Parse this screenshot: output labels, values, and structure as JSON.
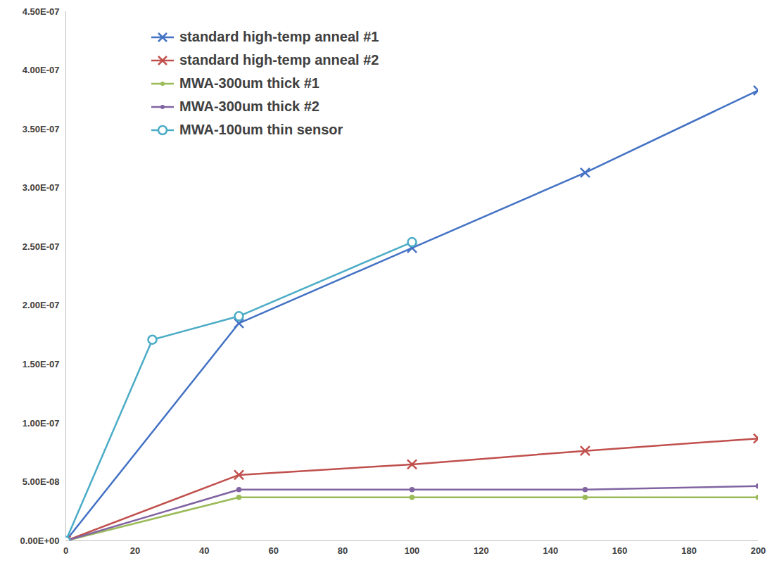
{
  "chart_data": {
    "type": "line",
    "xlim": [
      0,
      200
    ],
    "xticks": [
      0,
      20,
      40,
      60,
      80,
      100,
      120,
      140,
      160,
      180,
      200
    ],
    "ylim": [
      0,
      4.5e-07
    ],
    "yticks": [
      {
        "value": 0,
        "label": "0.00E+00"
      },
      {
        "value": 5e-08,
        "label": "5.00E-08"
      },
      {
        "value": 1e-07,
        "label": "1.00E-07"
      },
      {
        "value": 1.5e-07,
        "label": "1.50E-07"
      },
      {
        "value": 2e-07,
        "label": "2.00E-07"
      },
      {
        "value": 2.5e-07,
        "label": "2.50E-07"
      },
      {
        "value": 3e-07,
        "label": "3.00E-07"
      },
      {
        "value": 3.5e-07,
        "label": "3.50E-07"
      },
      {
        "value": 4e-07,
        "label": "4.00E-07"
      },
      {
        "value": 4.5e-07,
        "label": "4.50E-07"
      }
    ],
    "grid": false,
    "legend": "top-left",
    "series": [
      {
        "name": "standard high-temp anneal #1",
        "color": "#4472c4",
        "marker": "x",
        "x": [
          0,
          50,
          100,
          150,
          200
        ],
        "values": [
          0,
          1.85e-07,
          2.49e-07,
          3.13e-07,
          3.83e-07
        ]
      },
      {
        "name": "standard high-temp anneal #2",
        "color": "#c0504d",
        "marker": "x",
        "x": [
          0,
          50,
          100,
          150,
          200
        ],
        "values": [
          0,
          5.6e-08,
          6.5e-08,
          7.65e-08,
          8.7e-08
        ]
      },
      {
        "name": "MWA-300um thick #1",
        "color": "#9bbb59",
        "marker": "dot",
        "x": [
          0,
          50,
          100,
          150,
          200
        ],
        "values": [
          0,
          3.7e-08,
          3.7e-08,
          3.7e-08,
          3.7e-08
        ]
      },
      {
        "name": "MWA-300um thick #2",
        "color": "#8064a2",
        "marker": "dot",
        "x": [
          0,
          50,
          100,
          150,
          200
        ],
        "values": [
          0,
          4.35e-08,
          4.35e-08,
          4.35e-08,
          4.65e-08
        ]
      },
      {
        "name": "MWA-100um thin sensor",
        "color": "#4bacc6",
        "marker": "circle",
        "x": [
          0,
          25,
          50,
          100
        ],
        "values": [
          0,
          1.71e-07,
          1.91e-07,
          2.54e-07
        ]
      }
    ]
  }
}
